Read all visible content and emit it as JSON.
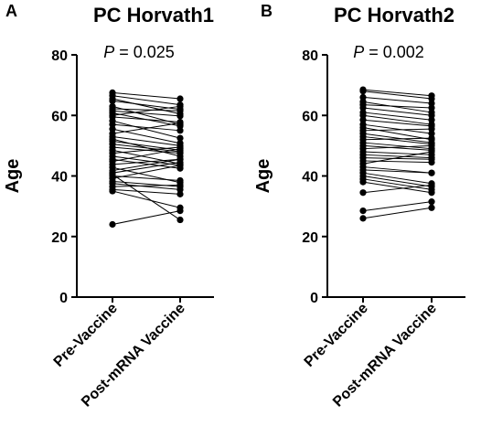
{
  "chart_data": [
    {
      "type": "scatter",
      "panel_letter": "A",
      "title": "PC Horvath1",
      "annotation": {
        "p_symbol": "P",
        "p_text": " = 0.025"
      },
      "ylabel": "Age",
      "xlabel": "",
      "categories": [
        "Pre-Vaccine",
        "Post-mRNA Vaccine"
      ],
      "ylim": [
        0,
        80
      ],
      "yticks": [
        "0",
        "20",
        "40",
        "60",
        "80"
      ],
      "grid": false,
      "pairs": [
        [
          67.5,
          65.5
        ],
        [
          66.5,
          63.5
        ],
        [
          65.5,
          60.5
        ],
        [
          64.8,
          62.0
        ],
        [
          63.0,
          57.0
        ],
        [
          62.2,
          61.5
        ],
        [
          61.5,
          59.8
        ],
        [
          60.8,
          56.5
        ],
        [
          60.0,
          63.0
        ],
        [
          59.5,
          57.8
        ],
        [
          58.2,
          52.5
        ],
        [
          57.0,
          55.0
        ],
        [
          55.5,
          50.8
        ],
        [
          54.0,
          57.5
        ],
        [
          53.0,
          50.0
        ],
        [
          52.2,
          46.5
        ],
        [
          51.5,
          48.5
        ],
        [
          50.5,
          48.0
        ],
        [
          49.5,
          47.5
        ],
        [
          48.5,
          44.0
        ],
        [
          47.5,
          49.5
        ],
        [
          46.5,
          43.5
        ],
        [
          45.5,
          42.5
        ],
        [
          44.8,
          49.0
        ],
        [
          43.8,
          45.5
        ],
        [
          42.8,
          37.8
        ],
        [
          41.8,
          45.5
        ],
        [
          41.0,
          44.5
        ],
        [
          40.0,
          38.5
        ],
        [
          39.2,
          43.5
        ],
        [
          38.2,
          36.5
        ],
        [
          37.5,
          35.5
        ],
        [
          36.5,
          37.0
        ],
        [
          35.5,
          34.0
        ],
        [
          35.0,
          29.5
        ],
        [
          24.0,
          28.5
        ],
        [
          40.5,
          25.5
        ]
      ]
    },
    {
      "type": "scatter",
      "panel_letter": "B",
      "title": "PC Horvath2",
      "annotation": {
        "p_symbol": "P",
        "p_text": " = 0.002"
      },
      "ylabel": "Age",
      "xlabel": "",
      "categories": [
        "Pre-Vaccine",
        "Post-mRNA Vaccine"
      ],
      "ylim": [
        0,
        80
      ],
      "yticks": [
        "0",
        "20",
        "40",
        "60",
        "80"
      ],
      "grid": false,
      "pairs": [
        [
          68.5,
          66.5
        ],
        [
          68.0,
          65.5
        ],
        [
          66.0,
          64.0
        ],
        [
          64.5,
          61.0
        ],
        [
          63.5,
          62.5
        ],
        [
          62.5,
          60.0
        ],
        [
          61.0,
          58.5
        ],
        [
          60.0,
          57.0
        ],
        [
          58.5,
          56.5
        ],
        [
          57.0,
          54.0
        ],
        [
          56.0,
          52.0
        ],
        [
          55.0,
          55.5
        ],
        [
          54.0,
          51.0
        ],
        [
          53.0,
          50.5
        ],
        [
          52.0,
          52.5
        ],
        [
          51.0,
          49.0
        ],
        [
          50.0,
          48.5
        ],
        [
          49.0,
          50.0
        ],
        [
          48.0,
          47.0
        ],
        [
          47.0,
          46.0
        ],
        [
          46.0,
          45.5
        ],
        [
          45.0,
          44.5
        ],
        [
          44.0,
          48.0
        ],
        [
          43.0,
          41.0
        ],
        [
          42.0,
          41.0
        ],
        [
          41.0,
          37.5
        ],
        [
          40.0,
          36.5
        ],
        [
          39.0,
          35.5
        ],
        [
          38.0,
          34.5
        ],
        [
          34.5,
          37.0
        ],
        [
          28.5,
          31.5
        ],
        [
          26.0,
          29.5
        ]
      ]
    }
  ]
}
